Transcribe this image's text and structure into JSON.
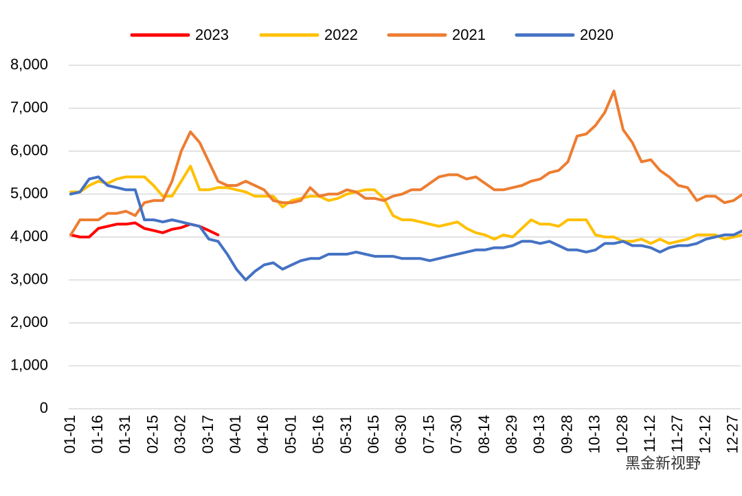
{
  "chart_data": {
    "type": "line",
    "categories": [
      "01-01",
      null,
      null,
      "01-16",
      null,
      null,
      "01-31",
      null,
      null,
      "02-15",
      null,
      null,
      "03-02",
      null,
      null,
      "03-17",
      null,
      null,
      "04-01",
      null,
      null,
      "04-16",
      null,
      null,
      "05-01",
      null,
      null,
      "05-16",
      null,
      null,
      "05-31",
      null,
      null,
      "06-15",
      null,
      null,
      "06-30",
      null,
      null,
      "07-15",
      null,
      null,
      "07-30",
      null,
      null,
      "08-14",
      null,
      null,
      "08-29",
      null,
      null,
      "09-13",
      null,
      null,
      "09-28",
      null,
      null,
      "10-13",
      null,
      null,
      "10-28",
      null,
      null,
      "11-12",
      null,
      null,
      "11-27",
      null,
      null,
      "12-12",
      null,
      null,
      "12-27",
      null
    ],
    "series": [
      {
        "name": "2023",
        "color": "#ff0000",
        "values": [
          4050,
          4000,
          4000,
          4200,
          4250,
          4300,
          4300,
          4330,
          4200,
          4150,
          4100,
          4180,
          4220,
          4300,
          4250,
          4150,
          4050,
          null,
          null,
          null,
          null,
          null,
          null,
          null,
          null,
          null,
          null,
          null,
          null,
          null,
          null,
          null,
          null,
          null,
          null,
          null,
          null,
          null,
          null,
          null,
          null,
          null,
          null,
          null,
          null,
          null,
          null,
          null,
          null,
          null,
          null,
          null,
          null,
          null,
          null,
          null,
          null,
          null,
          null,
          null,
          null,
          null,
          null,
          null,
          null,
          null,
          null,
          null,
          null,
          null,
          null,
          null,
          null,
          null
        ]
      },
      {
        "name": "2022",
        "color": "#ffc000",
        "values": [
          5050,
          5050,
          5200,
          5300,
          5250,
          5350,
          5400,
          5400,
          5400,
          5200,
          4950,
          4950,
          5300,
          5650,
          5100,
          5100,
          5150,
          5150,
          5100,
          5050,
          4950,
          4950,
          4950,
          4700,
          4850,
          4900,
          4950,
          4950,
          4850,
          4900,
          5000,
          5050,
          5100,
          5100,
          4900,
          4500,
          4400,
          4400,
          4350,
          4300,
          4250,
          4300,
          4350,
          4200,
          4100,
          4050,
          3950,
          4050,
          4000,
          4200,
          4400,
          4300,
          4300,
          4250,
          4400,
          4400,
          4400,
          4050,
          4000,
          4000,
          3900,
          3900,
          3950,
          3850,
          3950,
          3850,
          3900,
          3950,
          4050,
          4050,
          4050,
          3950,
          4000,
          4050
        ]
      },
      {
        "name": "2021",
        "color": "#ed7d31",
        "values": [
          4050,
          4400,
          4400,
          4400,
          4550,
          4550,
          4600,
          4500,
          4800,
          4850,
          4850,
          5300,
          6000,
          6450,
          6200,
          5750,
          5300,
          5200,
          5200,
          5300,
          5200,
          5100,
          4850,
          4800,
          4800,
          4850,
          5150,
          4950,
          5000,
          5000,
          5100,
          5050,
          4900,
          4900,
          4850,
          4950,
          5000,
          5100,
          5100,
          5250,
          5400,
          5450,
          5450,
          5350,
          5400,
          5250,
          5100,
          5100,
          5150,
          5200,
          5300,
          5350,
          5500,
          5550,
          5750,
          6350,
          6400,
          6600,
          6900,
          7400,
          6500,
          6200,
          5750,
          5800,
          5550,
          5400,
          5200,
          5150,
          4850,
          4950,
          4950,
          4800,
          4850,
          5000
        ]
      },
      {
        "name": "2020",
        "color": "#4472c4",
        "values": [
          5000,
          5050,
          5350,
          5400,
          5200,
          5150,
          5100,
          5100,
          4400,
          4400,
          4350,
          4400,
          4350,
          4300,
          4250,
          3950,
          3900,
          3600,
          3250,
          3000,
          3200,
          3350,
          3400,
          3250,
          3350,
          3450,
          3500,
          3500,
          3600,
          3600,
          3600,
          3650,
          3600,
          3550,
          3550,
          3550,
          3500,
          3500,
          3500,
          3450,
          3500,
          3550,
          3600,
          3650,
          3700,
          3700,
          3750,
          3750,
          3800,
          3900,
          3900,
          3850,
          3900,
          3800,
          3700,
          3700,
          3650,
          3700,
          3850,
          3850,
          3900,
          3800,
          3800,
          3750,
          3650,
          3750,
          3800,
          3800,
          3850,
          3950,
          4000,
          4050,
          4050,
          4150
        ]
      }
    ],
    "ylim": [
      0,
      8000
    ],
    "yticks": [
      0,
      {
        "value": 1000,
        "label": "1,000"
      },
      {
        "value": 2000,
        "label": "2,000"
      },
      {
        "value": 3000,
        "label": "3,000"
      },
      {
        "value": 4000,
        "label": "4,000"
      },
      {
        "value": 5000,
        "label": "5,000"
      },
      {
        "value": 6000,
        "label": "6,000"
      },
      {
        "value": 7000,
        "label": "7,000"
      },
      {
        "value": 8000,
        "label": "8,000"
      }
    ],
    "grid": true,
    "legend": "top",
    "annotations": [
      "黑金新视野"
    ]
  }
}
